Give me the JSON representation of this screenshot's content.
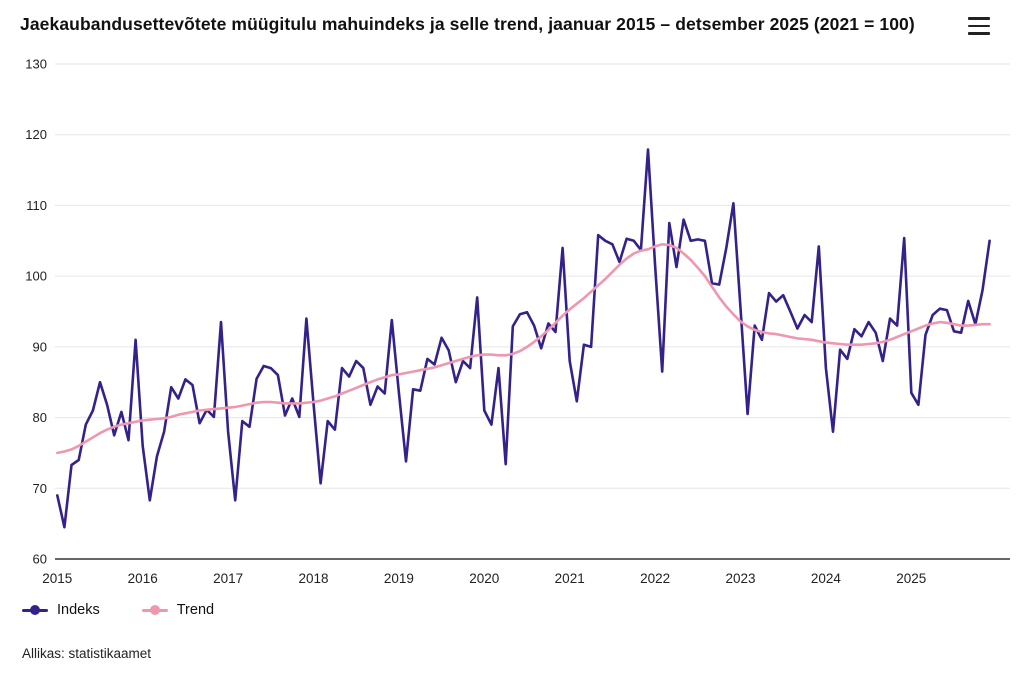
{
  "header": {
    "title": "Jaekaubandusettevõtete müügitulu mahuindeks ja selle trend, jaanuar 2015 – detsember 2025 (2021 = 100)",
    "menu_icon": "hamburger-menu-icon"
  },
  "legend": {
    "items": [
      {
        "label": "Indeks",
        "color": "#34218a"
      },
      {
        "label": "Trend",
        "color": "#ef97ae"
      }
    ]
  },
  "source": {
    "text": "Allikas: statistikaamet"
  },
  "colors": {
    "background": "#ffffff",
    "gridline": "#e6e6e6",
    "axis_line": "#333333",
    "tick_text": "#222222",
    "indeks_line": "#34218a",
    "trend_line": "#ef97ae"
  },
  "chart_data": {
    "type": "line",
    "title": "Jaekaubandusettevõtete müügitulu mahuindeks ja selle trend, jaanuar 2015 – detsember 2025 (2021 = 100)",
    "x_unit": "month",
    "x_range": "jaanuar 2015 – detsember 2025",
    "x_tick_labels": [
      "2015",
      "2016",
      "2017",
      "2018",
      "2019",
      "2020",
      "2021",
      "2022",
      "2023",
      "2024",
      "2025"
    ],
    "ylim": [
      60,
      130
    ],
    "y_ticks": [
      60,
      70,
      80,
      90,
      100,
      110,
      120,
      130
    ],
    "grid": "horizontal",
    "legend_position": "bottom-left",
    "series": [
      {
        "name": "Indeks",
        "color": "#34218a",
        "values": [
          69,
          64.5,
          73.3,
          74,
          79,
          81,
          85,
          81.8,
          77.5,
          80.8,
          76.8,
          91,
          76,
          68.3,
          74.5,
          78,
          84.3,
          82.7,
          85.4,
          84.6,
          79.2,
          81.1,
          80.1,
          93.5,
          78,
          68.3,
          79.5,
          78.7,
          85.5,
          87.3,
          87,
          86,
          80.3,
          82.7,
          80.1,
          94,
          82,
          70.7,
          79.5,
          78.3,
          87,
          85.8,
          88,
          87,
          81.8,
          84.4,
          83.4,
          93.8,
          83.5,
          73.8,
          84,
          83.8,
          88.3,
          87.5,
          91.3,
          89.5,
          85,
          88,
          87,
          97,
          81,
          79,
          87,
          73.4,
          92.9,
          94.6,
          94.9,
          93,
          89.8,
          93.3,
          92.1,
          104,
          88,
          82.3,
          90.3,
          90,
          105.8,
          105,
          104.5,
          102,
          105.3,
          105,
          103.7,
          117.9,
          101.5,
          86.5,
          107.5,
          101.3,
          108,
          105,
          105.2,
          105,
          99,
          98.8,
          104,
          110.3,
          95.5,
          80.5,
          93,
          91,
          97.6,
          96.4,
          97.3,
          95,
          92.6,
          94.5,
          93.5,
          104.2,
          87,
          78,
          89.6,
          88.3,
          92.5,
          91.5,
          93.5,
          92,
          88,
          94,
          93,
          105.4,
          83.5,
          81.8,
          91.7,
          94.5,
          95.4,
          95.2,
          92.2,
          92,
          96.5,
          93.2,
          98,
          105
        ]
      },
      {
        "name": "Trend",
        "color": "#ef97ae",
        "values": [
          75.0,
          75.2,
          75.5,
          76.0,
          76.6,
          77.2,
          77.8,
          78.3,
          78.7,
          79.0,
          79.2,
          79.4,
          79.6,
          79.7,
          79.8,
          79.9,
          80.1,
          80.4,
          80.6,
          80.8,
          81.0,
          81.1,
          81.2,
          81.3,
          81.4,
          81.5,
          81.7,
          81.9,
          82.1,
          82.2,
          82.2,
          82.1,
          82.0,
          82.0,
          82.0,
          82.1,
          82.2,
          82.4,
          82.7,
          83.0,
          83.4,
          83.8,
          84.2,
          84.6,
          85.0,
          85.4,
          85.7,
          86.0,
          86.1,
          86.3,
          86.5,
          86.7,
          86.9,
          87.1,
          87.4,
          87.7,
          88.0,
          88.3,
          88.6,
          88.8,
          88.9,
          88.9,
          88.8,
          88.8,
          89.0,
          89.4,
          90.0,
          90.7,
          91.5,
          92.4,
          93.4,
          94.4,
          95.3,
          96.1,
          96.9,
          97.8,
          98.7,
          99.6,
          100.6,
          101.6,
          102.5,
          103.2,
          103.6,
          103.8,
          104.2,
          104.5,
          104.4,
          104.0,
          103.2,
          102.3,
          101.2,
          100.0,
          98.5,
          97.0,
          95.7,
          94.6,
          93.6,
          92.9,
          92.4,
          92.1,
          91.9,
          91.8,
          91.6,
          91.4,
          91.2,
          91.1,
          91.0,
          90.8,
          90.6,
          90.5,
          90.4,
          90.3,
          90.3,
          90.3,
          90.4,
          90.5,
          90.7,
          91.0,
          91.4,
          91.8,
          92.2,
          92.6,
          93.0,
          93.3,
          93.5,
          93.4,
          93.2,
          93.0,
          93.0,
          93.1,
          93.2,
          93.2
        ]
      }
    ]
  }
}
